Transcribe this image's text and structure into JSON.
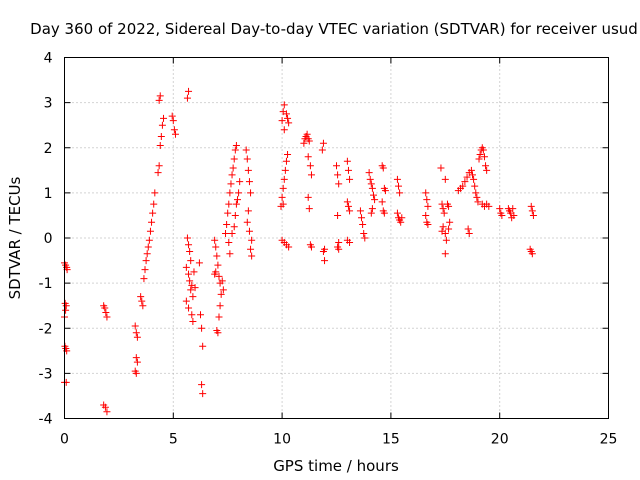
{
  "chart_data": {
    "type": "scatter",
    "title": "Day 360 of 2022, Sidereal Day-to-day VTEC variation (SDTVAR) for receiver usud",
    "xlabel": "GPS time / hours",
    "ylabel": "SDTVAR / TECUs",
    "xlim": [
      0,
      25
    ],
    "ylim": [
      -4,
      4
    ],
    "xticks": [
      0,
      5,
      10,
      15,
      20,
      25
    ],
    "yticks": [
      -4,
      -3,
      -2,
      -1,
      0,
      1,
      2,
      3,
      4
    ],
    "grid": true,
    "marker": "+",
    "color": "#ff0000",
    "series": [
      {
        "name": "SDTVAR",
        "points": [
          [
            0.0,
            -0.55
          ],
          [
            0.05,
            -0.6
          ],
          [
            0.1,
            -0.65
          ],
          [
            0.12,
            -0.7
          ],
          [
            0.03,
            -1.45
          ],
          [
            0.08,
            -1.5
          ],
          [
            0.05,
            -1.6
          ],
          [
            0.0,
            -1.75
          ],
          [
            0.02,
            -2.4
          ],
          [
            0.06,
            -2.45
          ],
          [
            0.1,
            -2.5
          ],
          [
            0.0,
            -3.2
          ],
          [
            0.08,
            -3.2
          ],
          [
            1.8,
            -1.5
          ],
          [
            1.85,
            -1.55
          ],
          [
            1.9,
            -1.65
          ],
          [
            1.95,
            -1.75
          ],
          [
            1.8,
            -3.7
          ],
          [
            1.88,
            -3.75
          ],
          [
            1.95,
            -3.85
          ],
          [
            3.25,
            -1.95
          ],
          [
            3.3,
            -2.1
          ],
          [
            3.35,
            -2.2
          ],
          [
            3.3,
            -2.65
          ],
          [
            3.35,
            -2.75
          ],
          [
            3.25,
            -2.95
          ],
          [
            3.3,
            -3.0
          ],
          [
            3.5,
            -1.3
          ],
          [
            3.55,
            -1.4
          ],
          [
            3.6,
            -1.5
          ],
          [
            3.65,
            -0.9
          ],
          [
            3.7,
            -0.7
          ],
          [
            3.75,
            -0.5
          ],
          [
            3.8,
            -0.35
          ],
          [
            3.85,
            -0.2
          ],
          [
            3.9,
            -0.05
          ],
          [
            3.95,
            0.15
          ],
          [
            4.0,
            0.35
          ],
          [
            4.05,
            0.55
          ],
          [
            4.1,
            0.75
          ],
          [
            4.15,
            1.0
          ],
          [
            4.3,
            1.45
          ],
          [
            4.35,
            1.6
          ],
          [
            4.4,
            2.05
          ],
          [
            4.45,
            2.25
          ],
          [
            4.5,
            2.5
          ],
          [
            4.55,
            2.65
          ],
          [
            4.35,
            3.05
          ],
          [
            4.4,
            3.15
          ],
          [
            4.95,
            2.7
          ],
          [
            5.0,
            2.6
          ],
          [
            5.05,
            2.4
          ],
          [
            5.1,
            2.3
          ],
          [
            5.65,
            3.1
          ],
          [
            5.7,
            3.25
          ],
          [
            5.65,
            0.0
          ],
          [
            5.7,
            -0.15
          ],
          [
            5.75,
            -0.3
          ],
          [
            5.8,
            -0.5
          ],
          [
            5.6,
            -0.65
          ],
          [
            5.7,
            -0.8
          ],
          [
            5.75,
            -0.95
          ],
          [
            5.85,
            -1.05
          ],
          [
            5.8,
            -1.15
          ],
          [
            5.9,
            -1.3
          ],
          [
            5.6,
            -1.4
          ],
          [
            5.7,
            -1.55
          ],
          [
            5.85,
            -1.7
          ],
          [
            5.9,
            -1.85
          ],
          [
            6.0,
            -1.1
          ],
          [
            5.95,
            -0.75
          ],
          [
            6.2,
            -0.55
          ],
          [
            6.3,
            -2.0
          ],
          [
            6.35,
            -2.4
          ],
          [
            6.3,
            -3.25
          ],
          [
            6.35,
            -3.45
          ],
          [
            6.25,
            -1.7
          ],
          [
            6.9,
            -0.05
          ],
          [
            6.95,
            -0.2
          ],
          [
            7.0,
            -0.4
          ],
          [
            7.05,
            -0.6
          ],
          [
            6.95,
            -0.75
          ],
          [
            7.1,
            -0.85
          ],
          [
            7.15,
            -1.0
          ],
          [
            7.2,
            -1.25
          ],
          [
            7.15,
            -1.5
          ],
          [
            7.1,
            -1.75
          ],
          [
            7.0,
            -2.05
          ],
          [
            7.05,
            -2.1
          ],
          [
            6.9,
            -0.8
          ],
          [
            7.25,
            -0.95
          ],
          [
            7.3,
            -1.15
          ],
          [
            7.4,
            0.1
          ],
          [
            7.45,
            0.3
          ],
          [
            7.5,
            0.55
          ],
          [
            7.55,
            0.75
          ],
          [
            7.6,
            1.0
          ],
          [
            7.65,
            1.2
          ],
          [
            7.7,
            1.4
          ],
          [
            7.75,
            1.55
          ],
          [
            7.8,
            1.75
          ],
          [
            7.85,
            1.95
          ],
          [
            7.9,
            2.05
          ],
          [
            7.55,
            -0.1
          ],
          [
            7.6,
            -0.35
          ],
          [
            7.7,
            0.1
          ],
          [
            7.8,
            0.25
          ],
          [
            7.85,
            0.5
          ],
          [
            7.9,
            0.75
          ],
          [
            7.95,
            0.85
          ],
          [
            8.0,
            1.0
          ],
          [
            8.05,
            1.25
          ],
          [
            8.35,
            1.95
          ],
          [
            8.4,
            1.75
          ],
          [
            8.45,
            1.5
          ],
          [
            8.5,
            1.25
          ],
          [
            8.55,
            1.0
          ],
          [
            8.45,
            0.6
          ],
          [
            8.4,
            0.35
          ],
          [
            8.5,
            0.15
          ],
          [
            8.6,
            -0.05
          ],
          [
            8.55,
            -0.25
          ],
          [
            8.6,
            -0.4
          ],
          [
            9.95,
            0.7
          ],
          [
            10.0,
            0.9
          ],
          [
            10.05,
            1.1
          ],
          [
            10.1,
            1.3
          ],
          [
            10.15,
            1.5
          ],
          [
            10.2,
            1.7
          ],
          [
            10.25,
            1.85
          ],
          [
            10.05,
            0.75
          ],
          [
            10.1,
            2.4
          ],
          [
            10.0,
            2.6
          ],
          [
            10.05,
            2.8
          ],
          [
            10.1,
            2.95
          ],
          [
            10.2,
            2.75
          ],
          [
            10.25,
            2.65
          ],
          [
            10.3,
            2.55
          ],
          [
            10.0,
            -0.05
          ],
          [
            10.1,
            -0.1
          ],
          [
            10.2,
            -0.15
          ],
          [
            10.3,
            -0.2
          ],
          [
            11.0,
            2.1
          ],
          [
            11.05,
            2.2
          ],
          [
            11.1,
            2.25
          ],
          [
            11.15,
            2.3
          ],
          [
            11.2,
            2.2
          ],
          [
            11.25,
            2.15
          ],
          [
            11.2,
            1.8
          ],
          [
            11.3,
            1.6
          ],
          [
            11.35,
            1.4
          ],
          [
            11.2,
            0.9
          ],
          [
            11.25,
            0.65
          ],
          [
            11.3,
            -0.15
          ],
          [
            11.35,
            -0.2
          ],
          [
            11.9,
            2.1
          ],
          [
            11.85,
            1.95
          ],
          [
            11.95,
            -0.25
          ],
          [
            11.9,
            -0.3
          ],
          [
            11.95,
            -0.5
          ],
          [
            12.5,
            1.6
          ],
          [
            12.55,
            1.4
          ],
          [
            12.6,
            1.2
          ],
          [
            12.55,
            0.5
          ],
          [
            12.6,
            -0.1
          ],
          [
            12.55,
            -0.2
          ],
          [
            12.6,
            -0.25
          ],
          [
            13.0,
            1.7
          ],
          [
            13.05,
            1.5
          ],
          [
            13.1,
            1.3
          ],
          [
            13.0,
            0.8
          ],
          [
            13.05,
            0.7
          ],
          [
            13.1,
            0.6
          ],
          [
            13.0,
            -0.05
          ],
          [
            13.1,
            -0.1
          ],
          [
            13.6,
            0.6
          ],
          [
            13.65,
            0.45
          ],
          [
            13.7,
            0.3
          ],
          [
            13.75,
            0.1
          ],
          [
            13.8,
            0.0
          ],
          [
            14.0,
            1.45
          ],
          [
            14.05,
            1.3
          ],
          [
            14.1,
            1.2
          ],
          [
            14.15,
            1.1
          ],
          [
            14.2,
            0.95
          ],
          [
            14.25,
            0.85
          ],
          [
            14.1,
            0.55
          ],
          [
            14.15,
            0.65
          ],
          [
            14.6,
            1.6
          ],
          [
            14.65,
            1.55
          ],
          [
            14.7,
            1.1
          ],
          [
            14.75,
            1.05
          ],
          [
            14.6,
            0.8
          ],
          [
            14.65,
            0.6
          ],
          [
            14.7,
            0.55
          ],
          [
            15.3,
            1.3
          ],
          [
            15.35,
            1.15
          ],
          [
            15.4,
            1.0
          ],
          [
            15.3,
            0.55
          ],
          [
            15.35,
            0.45
          ],
          [
            15.4,
            0.4
          ],
          [
            15.45,
            0.35
          ],
          [
            15.5,
            0.45
          ],
          [
            16.6,
            1.0
          ],
          [
            16.65,
            0.85
          ],
          [
            16.7,
            0.7
          ],
          [
            16.6,
            0.5
          ],
          [
            16.65,
            0.35
          ],
          [
            16.7,
            0.3
          ],
          [
            17.3,
            1.55
          ],
          [
            17.35,
            0.75
          ],
          [
            17.4,
            0.65
          ],
          [
            17.45,
            0.55
          ],
          [
            17.35,
            0.15
          ],
          [
            17.4,
            0.25
          ],
          [
            17.5,
            0.1
          ],
          [
            17.55,
            -0.05
          ],
          [
            17.5,
            -0.35
          ],
          [
            17.6,
            0.75
          ],
          [
            17.65,
            0.7
          ],
          [
            17.5,
            1.3
          ],
          [
            17.7,
            0.35
          ],
          [
            17.65,
            0.2
          ],
          [
            18.1,
            1.05
          ],
          [
            18.2,
            1.1
          ],
          [
            18.3,
            1.15
          ],
          [
            18.4,
            1.25
          ],
          [
            18.5,
            1.35
          ],
          [
            18.6,
            1.45
          ],
          [
            18.7,
            1.5
          ],
          [
            18.75,
            1.4
          ],
          [
            18.8,
            1.3
          ],
          [
            18.85,
            1.15
          ],
          [
            18.9,
            1.0
          ],
          [
            18.95,
            0.9
          ],
          [
            19.0,
            0.8
          ],
          [
            19.05,
            1.75
          ],
          [
            19.1,
            1.85
          ],
          [
            19.15,
            1.95
          ],
          [
            19.2,
            2.0
          ],
          [
            19.25,
            1.95
          ],
          [
            19.3,
            1.8
          ],
          [
            19.35,
            1.6
          ],
          [
            19.4,
            1.5
          ],
          [
            19.2,
            0.75
          ],
          [
            19.3,
            0.7
          ],
          [
            19.4,
            0.75
          ],
          [
            19.5,
            0.7
          ],
          [
            18.55,
            0.2
          ],
          [
            18.6,
            0.1
          ],
          [
            20.0,
            0.65
          ],
          [
            20.05,
            0.55
          ],
          [
            20.1,
            0.5
          ],
          [
            20.4,
            0.65
          ],
          [
            20.45,
            0.6
          ],
          [
            20.5,
            0.55
          ],
          [
            20.55,
            0.45
          ],
          [
            20.6,
            0.65
          ],
          [
            20.65,
            0.5
          ],
          [
            21.4,
            -0.25
          ],
          [
            21.45,
            -0.3
          ],
          [
            21.5,
            -0.35
          ],
          [
            21.45,
            0.7
          ],
          [
            21.5,
            0.6
          ],
          [
            21.55,
            0.5
          ]
        ]
      }
    ]
  }
}
